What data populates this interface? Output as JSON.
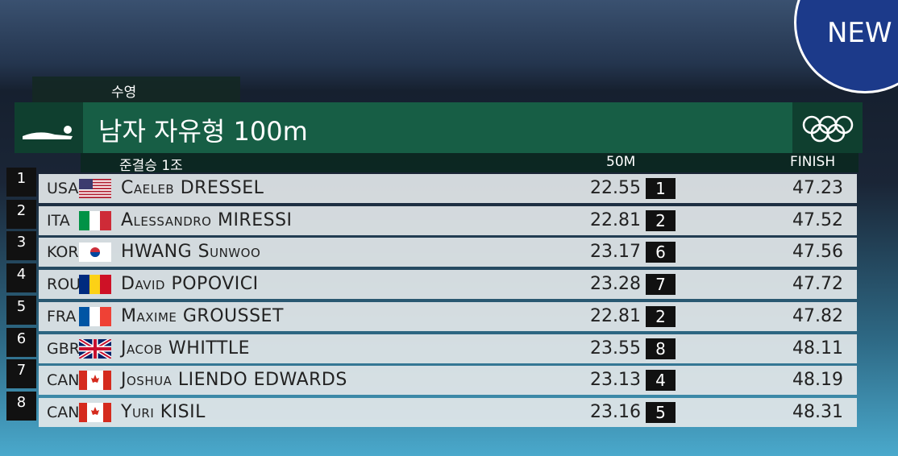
{
  "logo": "NEW",
  "header": {
    "sport": "수영",
    "event": "남자 자유형 100m",
    "round": "준결승 1조",
    "col_split": "50M",
    "col_finish": "FINISH"
  },
  "table": {
    "rows": [
      {
        "rank": "1",
        "country": "USA",
        "name": "Caeleb DRESSEL",
        "split": "22.55",
        "split_rank": "1",
        "finish": "47.23"
      },
      {
        "rank": "2",
        "country": "ITA",
        "name": "Alessandro MIRESSI",
        "split": "22.81",
        "split_rank": "2",
        "finish": "47.52"
      },
      {
        "rank": "3",
        "country": "KOR",
        "name": "HWANG Sunwoo",
        "split": "23.17",
        "split_rank": "6",
        "finish": "47.56"
      },
      {
        "rank": "4",
        "country": "ROU",
        "name": "David POPOVICI",
        "split": "23.28",
        "split_rank": "7",
        "finish": "47.72"
      },
      {
        "rank": "5",
        "country": "FRA",
        "name": "Maxime GROUSSET",
        "split": "22.81",
        "split_rank": "2",
        "finish": "47.82"
      },
      {
        "rank": "6",
        "country": "GBR",
        "name": "Jacob WHITTLE",
        "split": "23.55",
        "split_rank": "8",
        "finish": "48.11"
      },
      {
        "rank": "7",
        "country": "CAN",
        "name": "Joshua LIENDO EDWARDS",
        "split": "23.13",
        "split_rank": "4",
        "finish": "48.19"
      },
      {
        "rank": "8",
        "country": "CAN",
        "name": "Yuri KISIL",
        "split": "23.16",
        "split_rank": "5",
        "finish": "48.31"
      }
    ]
  }
}
